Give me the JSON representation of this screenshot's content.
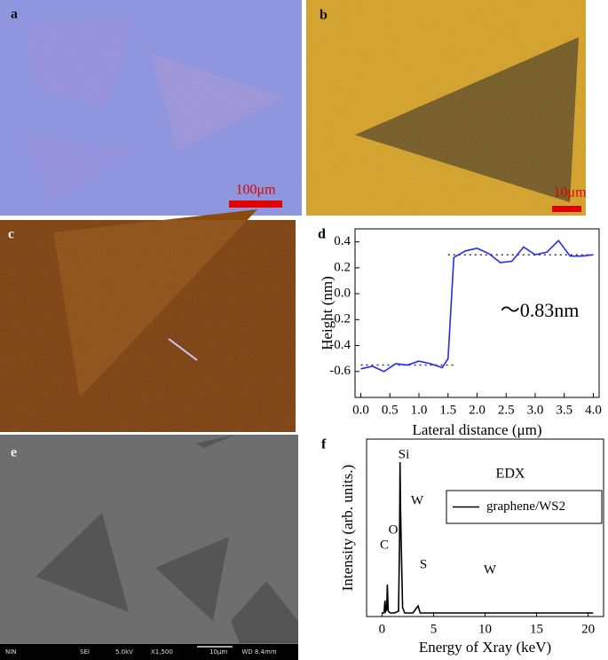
{
  "panels": {
    "a": {
      "label": "a",
      "scale_bar": "100μm"
    },
    "b": {
      "label": "b",
      "scale_bar": "10μm"
    },
    "c": {
      "label": "c"
    },
    "e": {
      "label": "e",
      "info_bar": [
        "NIN",
        "SEI",
        "5.0kV",
        "X1,500",
        "10μm",
        "WD 8.4mm"
      ]
    }
  },
  "chart_data": [
    {
      "type": "line",
      "panel_label": "d",
      "xlabel": "Lateral distance (μm)",
      "ylabel": "Height (nm)",
      "x": [
        0,
        0.2,
        0.4,
        0.6,
        0.8,
        1.0,
        1.2,
        1.4,
        1.5,
        1.6,
        1.8,
        2.0,
        2.2,
        2.4,
        2.6,
        2.8,
        3.0,
        3.2,
        3.4,
        3.6,
        3.8,
        4.0
      ],
      "series": [
        {
          "color": "#2a2aee",
          "values": [
            -0.58,
            -0.56,
            -0.6,
            -0.54,
            -0.55,
            -0.52,
            -0.54,
            -0.57,
            -0.5,
            0.28,
            0.33,
            0.35,
            0.31,
            0.24,
            0.25,
            0.36,
            0.3,
            0.32,
            0.41,
            0.29,
            0.29,
            0.3
          ]
        }
      ],
      "reference_lines": [
        {
          "y": -0.55,
          "xlim": [
            0,
            1.6
          ]
        },
        {
          "y": 0.3,
          "xlim": [
            1.5,
            4.0
          ]
        }
      ],
      "annotations": [
        "～0.83nm"
      ],
      "xlim": [
        -0.1,
        4.1
      ],
      "ylim": [
        -0.8,
        0.5
      ],
      "xticks": [
        {
          "value": 0,
          "label": "0.0"
        },
        0.5,
        {
          "value": 1,
          "label": "1.0"
        },
        1.5,
        {
          "value": 2,
          "label": "2.0"
        },
        2.5,
        {
          "value": 3,
          "label": "3.0"
        },
        3.5,
        {
          "value": 4,
          "label": "4.0"
        }
      ],
      "yticks": [
        -0.6,
        -0.4,
        -0.2,
        {
          "value": 0,
          "label": "0.0"
        },
        0.2,
        0.4
      ]
    },
    {
      "type": "line",
      "panel_label": "f",
      "xlabel": "Energy of Xray (keV)",
      "ylabel": "Intensity (arb. units.)",
      "inset_title": "EDX",
      "x": [
        0,
        0.2,
        0.28,
        0.36,
        0.45,
        0.52,
        0.6,
        0.8,
        1.2,
        1.6,
        1.7,
        1.75,
        1.8,
        1.9,
        2.0,
        2.2,
        3.0,
        3.5,
        3.7,
        4.0,
        6.0,
        10.0,
        15.0,
        20.5
      ],
      "series": [
        {
          "name": "graphene/WS2",
          "color": "#000000",
          "values": [
            2,
            2,
            9,
            3,
            4,
            18,
            3,
            2,
            2,
            3,
            40,
            87,
            60,
            30,
            5,
            2,
            2,
            6,
            2,
            2,
            2,
            2,
            2,
            2
          ]
        }
      ],
      "annotations": [
        "Si",
        "W",
        "O",
        "C",
        "S",
        "W"
      ],
      "legend": "upper right",
      "xlim": [
        -1.5,
        21.5
      ],
      "ylim": [
        0,
        100
      ],
      "xticks": [
        0,
        5,
        10,
        15,
        20
      ]
    }
  ]
}
